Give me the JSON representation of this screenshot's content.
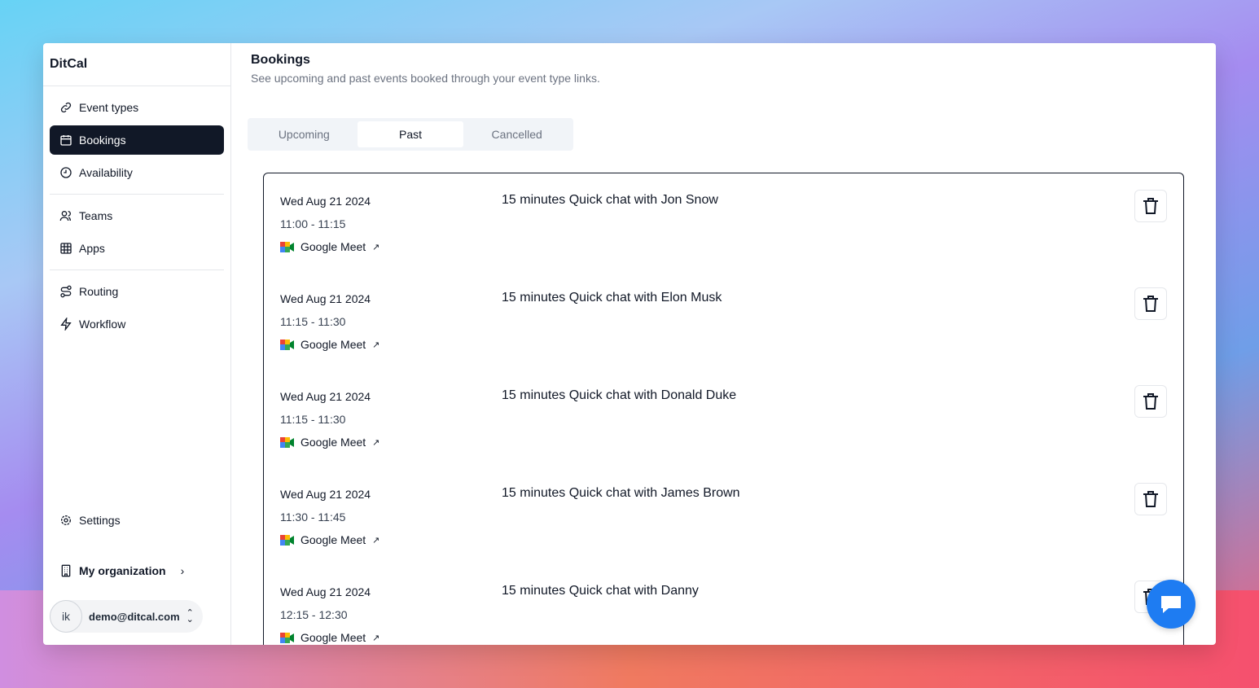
{
  "app": {
    "name": "DitCal"
  },
  "sidebar": {
    "items": [
      {
        "label": "Event types",
        "icon": "link-icon"
      },
      {
        "label": "Bookings",
        "icon": "calendar-icon",
        "active": true
      },
      {
        "label": "Availability",
        "icon": "clock-icon"
      },
      {
        "label": "Teams",
        "icon": "users-icon"
      },
      {
        "label": "Apps",
        "icon": "grid-icon"
      },
      {
        "label": "Routing",
        "icon": "route-icon"
      },
      {
        "label": "Workflow",
        "icon": "zap-icon"
      }
    ],
    "settings": "Settings",
    "organization": "My organization",
    "user": {
      "initials": "ik",
      "email": "demo@ditcal.com"
    }
  },
  "header": {
    "title": "Bookings",
    "subtitle": "See upcoming and past events booked through your event type links."
  },
  "tabs": [
    {
      "label": "Upcoming"
    },
    {
      "label": "Past",
      "selected": true
    },
    {
      "label": "Cancelled"
    }
  ],
  "bookings": [
    {
      "date": "Wed Aug 21 2024",
      "time": "11:00 - 11:15",
      "location": "Google Meet",
      "title": "15 minutes Quick chat with Jon Snow"
    },
    {
      "date": "Wed Aug 21 2024",
      "time": "11:15 - 11:30",
      "location": "Google Meet",
      "title": "15 minutes Quick chat with Elon Musk"
    },
    {
      "date": "Wed Aug 21 2024",
      "time": "11:15 - 11:30",
      "location": "Google Meet",
      "title": "15 minutes Quick chat with Donald Duke"
    },
    {
      "date": "Wed Aug 21 2024",
      "time": "11:30 - 11:45",
      "location": "Google Meet",
      "title": "15 minutes Quick chat with James Brown"
    },
    {
      "date": "Wed Aug 21 2024",
      "time": "12:15 - 12:30",
      "location": "Google Meet",
      "title": "15 minutes Quick chat with Danny"
    }
  ],
  "colors": {
    "active": "#111827",
    "chat": "#1e7cf2"
  }
}
